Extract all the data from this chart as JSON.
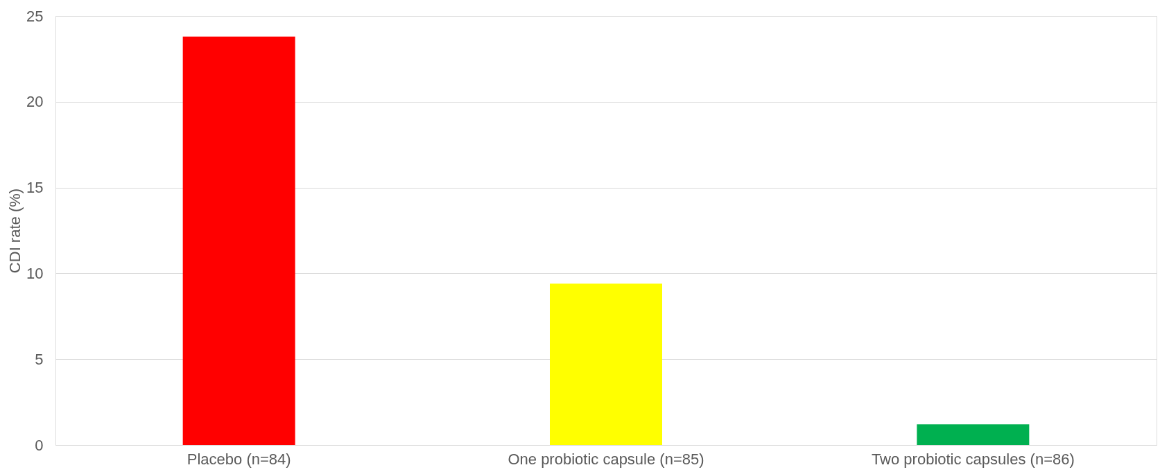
{
  "chart_data": {
    "type": "bar",
    "ylabel": "CDI rate (%)",
    "categories": [
      "Placebo (n=84)",
      "One probiotic capsule (n=85)",
      "Two probiotic capsules (n=86)"
    ],
    "values": [
      23.8,
      9.4,
      1.2
    ],
    "colors": [
      "#ff0000",
      "#ffff00",
      "#00b050"
    ],
    "ylim": [
      0,
      25
    ],
    "yticks": [
      0,
      5,
      10,
      15,
      20,
      25
    ],
    "grid": "y",
    "legend": false
  }
}
